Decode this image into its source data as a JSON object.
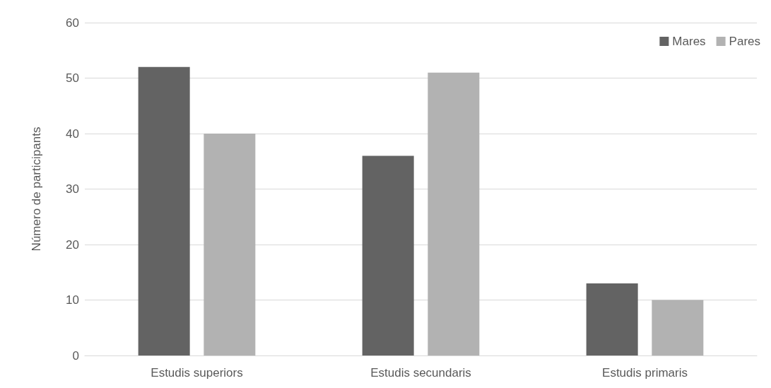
{
  "chart_data": {
    "type": "bar",
    "ylabel": "Número de participants",
    "categories": [
      "Estudis superiors",
      "Estudis secundaris",
      "Estudis primaris"
    ],
    "series": [
      {
        "name": "Mares",
        "color": "#636363",
        "values": [
          52,
          36,
          13
        ]
      },
      {
        "name": "Pares",
        "color": "#b2b2b2",
        "values": [
          40,
          51,
          10
        ]
      }
    ],
    "ylim": [
      0,
      60
    ],
    "yticks": [
      0,
      10,
      20,
      30,
      40,
      50,
      60
    ],
    "grid": "y",
    "legend": "top right"
  }
}
